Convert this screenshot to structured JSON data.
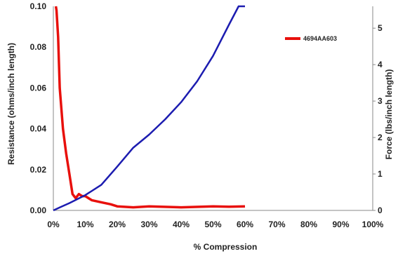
{
  "chart_data": {
    "type": "line",
    "xlabel": "% Compression",
    "ylabel_left": "Resistance  (ohms/inch length)",
    "ylabel_right": "Force (lbs/inch length)",
    "x_ticks": [
      "0%",
      "10%",
      "20%",
      "30%",
      "40%",
      "50%",
      "60%",
      "70%",
      "80%",
      "90%",
      "100%"
    ],
    "y_left_ticks": [
      "0.00",
      "0.02",
      "0.04",
      "0.06",
      "0.08",
      "0.10"
    ],
    "y_right_ticks": [
      "0",
      "1",
      "2",
      "3",
      "4",
      "5"
    ],
    "xlim": [
      0,
      100
    ],
    "ylim_left": [
      0,
      0.1
    ],
    "ylim_right": [
      0,
      5.6
    ],
    "grid": false,
    "legend_position": "top-right",
    "series": [
      {
        "name": "4694AA603",
        "axis": "left",
        "color": "#e8100c",
        "x": [
          0.8,
          1.0,
          1.5,
          2.0,
          2.5,
          3.0,
          4.0,
          5.0,
          6.0,
          7.0,
          8.0,
          9.0,
          10.0,
          12.0,
          15.0,
          18.0,
          20.0,
          25.0,
          30.0,
          40.0,
          50.0,
          55.0,
          60.0
        ],
        "y": [
          0.1,
          0.098,
          0.085,
          0.06,
          0.05,
          0.04,
          0.028,
          0.018,
          0.008,
          0.006,
          0.008,
          0.007,
          0.007,
          0.005,
          0.004,
          0.003,
          0.002,
          0.0015,
          0.002,
          0.0015,
          0.002,
          0.0018,
          0.002
        ]
      },
      {
        "name": "",
        "axis": "right",
        "color": "#1c1cb0",
        "x": [
          0,
          2,
          5,
          10,
          15,
          20,
          25,
          30,
          35,
          40,
          45,
          50,
          55,
          58,
          60
        ],
        "y": [
          0.0,
          0.08,
          0.2,
          0.42,
          0.7,
          1.2,
          1.72,
          2.08,
          2.5,
          2.97,
          3.54,
          4.24,
          5.1,
          5.7,
          6.0
        ]
      }
    ]
  }
}
